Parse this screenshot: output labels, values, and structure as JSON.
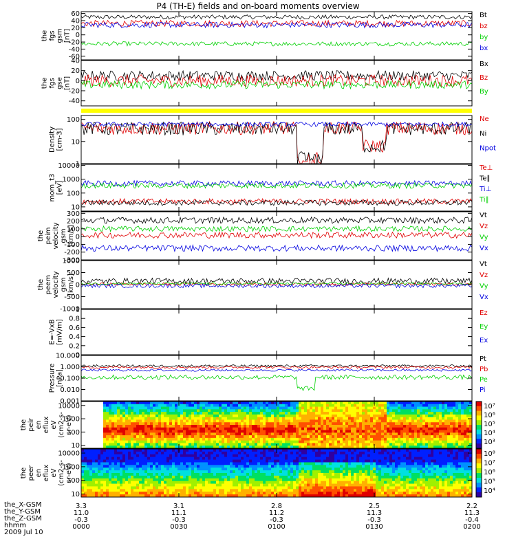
{
  "title": "P4 (TH-E) fields and on-board moments overview",
  "colors": {
    "black": "#000000",
    "red": "#e00000",
    "green": "#00d000",
    "blue": "#0000e0",
    "yellow": "#ffff00"
  },
  "chart_data": [
    {
      "type": "line",
      "id": "fgs_gsm",
      "ylabel": [
        "the",
        "fgs",
        "gsm",
        "[nT]"
      ],
      "yticks": [
        60,
        40,
        20,
        0,
        -20,
        -40,
        -60
      ],
      "ylim": [
        -70,
        65
      ],
      "series": [
        {
          "name": "Bt",
          "color": "black",
          "level": 50,
          "noise": 6
        },
        {
          "name": "bz",
          "color": "red",
          "level": 32,
          "noise": 9
        },
        {
          "name": "by",
          "color": "green",
          "level": -25,
          "noise": 6
        },
        {
          "name": "bx",
          "color": "blue",
          "level": 28,
          "noise": 8
        }
      ]
    },
    {
      "type": "line",
      "id": "fgs_gse",
      "ylabel": [
        "the",
        "fgs",
        "gse",
        "[nT]"
      ],
      "yticks": [
        40,
        20,
        0,
        -20,
        -40
      ],
      "ylim": [
        -50,
        40
      ],
      "series": [
        {
          "name": "Bx",
          "color": "black",
          "level": 10,
          "noise": 10
        },
        {
          "name": "Bz",
          "color": "red",
          "level": 0,
          "noise": 12
        },
        {
          "name": "By",
          "color": "green",
          "level": -8,
          "noise": 8
        }
      ]
    },
    {
      "type": "line",
      "id": "density",
      "ylabel": [
        "Density",
        "[cm-3]"
      ],
      "log": true,
      "yticks": [
        100,
        10,
        1
      ],
      "ylim": [
        1,
        150
      ],
      "series": [
        {
          "name": "Ne",
          "color": "red",
          "level": 40,
          "noise": 0.3
        },
        {
          "name": "Ni",
          "color": "black",
          "level": 38,
          "noise": 0.3
        },
        {
          "name": "Npot",
          "color": "blue",
          "level": 60,
          "noise": 0.1
        }
      ]
    },
    {
      "type": "line",
      "id": "temp",
      "ylabel": [
        "mom_t3",
        "[eV]"
      ],
      "log": true,
      "yticks": [
        10000,
        1000,
        100,
        10
      ],
      "ylim": [
        5,
        12000
      ],
      "series": [
        {
          "name": "Te⊥",
          "color": "red",
          "level": 25,
          "noise": 0.2
        },
        {
          "name": "Te∥",
          "color": "black",
          "level": 20,
          "noise": 0.2
        },
        {
          "name": "Ti⊥",
          "color": "blue",
          "level": 500,
          "noise": 0.2
        },
        {
          "name": "Ti∥",
          "color": "green",
          "level": 350,
          "noise": 0.2
        }
      ]
    },
    {
      "type": "line",
      "id": "peim_v",
      "ylabel": [
        "the",
        "peim",
        "velocity",
        "gsm",
        "[km/s]"
      ],
      "yticks": [
        300,
        200,
        100,
        0,
        -100,
        -200,
        -300
      ],
      "ylim": [
        -300,
        320
      ],
      "series": [
        {
          "name": "Vt",
          "color": "black",
          "level": 210,
          "noise": 40
        },
        {
          "name": "Vz",
          "color": "red",
          "level": 20,
          "noise": 40
        },
        {
          "name": "Vy",
          "color": "green",
          "level": 100,
          "noise": 35
        },
        {
          "name": "Vx",
          "color": "blue",
          "level": -150,
          "noise": 40
        }
      ]
    },
    {
      "type": "line",
      "id": "peem_v",
      "ylabel": [
        "the",
        "peem",
        "velocity",
        "gsm",
        "[km/s]"
      ],
      "yticks": [
        1000,
        500,
        0,
        -500,
        -1000
      ],
      "ylim": [
        -1000,
        1000
      ],
      "series": [
        {
          "name": "Vt",
          "color": "black",
          "level": 150,
          "noise": 120
        },
        {
          "name": "Vz",
          "color": "red",
          "level": 20,
          "noise": 60
        },
        {
          "name": "Vy",
          "color": "green",
          "level": 40,
          "noise": 50
        },
        {
          "name": "Vx",
          "color": "blue",
          "level": -50,
          "noise": 80
        }
      ]
    },
    {
      "type": "line",
      "id": "efield",
      "ylabel": [
        "E=-VxB",
        "[mV/m]"
      ],
      "yticks": [
        1.0,
        0.8,
        0.6,
        0.4,
        0.2,
        0.0
      ],
      "ylim": [
        0,
        1
      ],
      "series": [
        {
          "name": "Ez",
          "color": "red"
        },
        {
          "name": "Ey",
          "color": "green"
        },
        {
          "name": "Ex",
          "color": "blue"
        }
      ]
    },
    {
      "type": "line",
      "id": "pressure",
      "ylabel": [
        "Pressure",
        "[nPa]"
      ],
      "log": true,
      "yticks": [
        10.0,
        1.0,
        0.1,
        0.01,
        0.001
      ],
      "ytick_labels": [
        "10.000",
        "1.000",
        "0.100",
        "0.010",
        "0.001"
      ],
      "ylim": [
        0.001,
        10
      ],
      "series": [
        {
          "name": "Pt",
          "color": "black",
          "level": 1.2,
          "noise": 0.1
        },
        {
          "name": "Pb",
          "color": "red",
          "level": 0.9,
          "noise": 0.1
        },
        {
          "name": "Pe",
          "color": "green",
          "level": 0.12,
          "noise": 0.2
        },
        {
          "name": "Pi",
          "color": "blue",
          "level": 0.5,
          "noise": 0.1
        }
      ]
    },
    {
      "type": "heatmap",
      "id": "peir",
      "ylabel": [
        "the",
        "peir",
        "en",
        "eflux",
        "eV",
        "(cm2-s-",
        "sr-eV)"
      ],
      "log": true,
      "yticks": [
        10000,
        1000,
        100,
        10
      ],
      "ylim": [
        6,
        20000
      ],
      "colorbar": {
        "ticks": [
          "10⁷",
          "10⁶",
          "10⁵",
          "10⁴",
          "10³"
        ]
      }
    },
    {
      "type": "heatmap",
      "id": "peer",
      "ylabel": [
        "the",
        "peer",
        "en",
        "eflux",
        "eV",
        "(cm2-s-",
        "sr-eV)"
      ],
      "log": true,
      "yticks": [
        10000,
        1000,
        100,
        10
      ],
      "ylim": [
        6,
        20000
      ],
      "colorbar": {
        "ticks": [
          "10⁸",
          "10⁷",
          "10⁶",
          "10⁵",
          "10⁴"
        ]
      }
    }
  ],
  "footer": {
    "rows": [
      {
        "label": "the_X-GSM",
        "values": [
          "3.3",
          "3.1",
          "2.8",
          "2.5",
          "2.2"
        ]
      },
      {
        "label": "the_Y-GSM",
        "values": [
          "11.0",
          "11.1",
          "11.2",
          "11.3",
          "11.3"
        ]
      },
      {
        "label": "the_Z-GSM",
        "values": [
          "-0.3",
          "-0.3",
          "-0.3",
          "-0.3",
          "-0.4"
        ]
      },
      {
        "label": "hhmm",
        "values": [
          "0000",
          "0030",
          "0100",
          "0130",
          "0200"
        ]
      }
    ],
    "date": "2009 Jul 10"
  }
}
